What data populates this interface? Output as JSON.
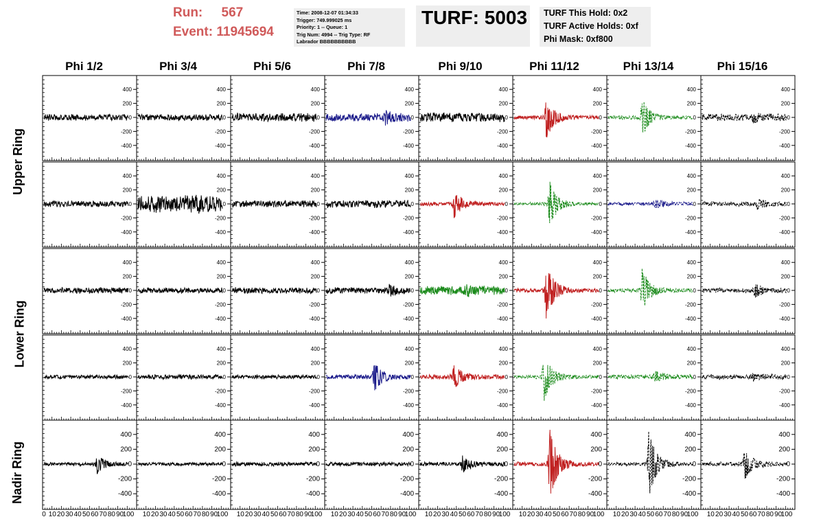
{
  "header": {
    "run_label": "Run:",
    "run_value": "567",
    "event_label": "Event:",
    "event_value": "11945694",
    "info_lines": [
      "Time: 2008-12-07 01:34:33",
      "Trigger: 749.999025 ms",
      "Priority: 1 -- Queue: 1",
      "Trig Num: 4994 -- Trig Type: RF",
      "Labrador BBBBBBBBBB"
    ],
    "turf": "TURF: 5003",
    "hold_lines": [
      "TURF This Hold: 0x2",
      "TURF Active Holds: 0xf",
      "Phi Mask: 0xf800"
    ],
    "accent_color": "#d05a5a"
  },
  "phi_headers": [
    "Phi 1/2",
    "Phi 3/4",
    "Phi 5/6",
    "Phi 7/8",
    "Phi 9/10",
    "Phi 11/12",
    "Phi 13/14",
    "Phi 15/16"
  ],
  "ring_labels": [
    "Upper Ring",
    "Lower Ring",
    "Nadir Ring"
  ],
  "chart_data": {
    "type": "line",
    "ylim": [
      -500,
      500
    ],
    "xlim": [
      0,
      100
    ],
    "y_ticks": [
      -400,
      -200,
      0,
      200,
      400
    ],
    "x_tick_labels": [
      "0",
      "10",
      "20",
      "30",
      "40",
      "50",
      "60",
      "70",
      "80",
      "90",
      "100"
    ],
    "colors": {
      "black": "#000000",
      "red": "#c02020",
      "green": "#1a8a1a",
      "blue": "#1a1a8a"
    },
    "panels": [
      [
        {
          "color": "black",
          "amp": 40,
          "peak": 0,
          "peak_x": 50,
          "dashed": false
        },
        {
          "color": "black",
          "amp": 40,
          "peak": 0,
          "peak_x": 50,
          "dashed": false
        },
        {
          "color": "black",
          "amp": 55,
          "peak": 0,
          "peak_x": 50,
          "dashed": false
        },
        {
          "color": "blue",
          "amp": 50,
          "peak": 60,
          "peak_x": 70,
          "dashed": false
        },
        {
          "color": "black",
          "amp": 60,
          "peak": 0,
          "peak_x": 50,
          "dashed": false
        },
        {
          "color": "red",
          "amp": 25,
          "peak": 300,
          "peak_x": 38,
          "dashed": false
        },
        {
          "color": "green",
          "amp": 25,
          "peak": 260,
          "peak_x": 40,
          "dashed": true
        },
        {
          "color": "black",
          "amp": 45,
          "peak": 40,
          "peak_x": 60,
          "dashed": true
        }
      ],
      [
        {
          "color": "black",
          "amp": 40,
          "peak": 0,
          "peak_x": 50,
          "dashed": false
        },
        {
          "color": "black",
          "amp": 110,
          "peak": 40,
          "peak_x": 70,
          "dashed": false
        },
        {
          "color": "black",
          "amp": 45,
          "peak": 0,
          "peak_x": 50,
          "dashed": false
        },
        {
          "color": "black",
          "amp": 50,
          "peak": 0,
          "peak_x": 50,
          "dashed": false
        },
        {
          "color": "red",
          "amp": 25,
          "peak": 190,
          "peak_x": 40,
          "dashed": false
        },
        {
          "color": "green",
          "amp": 20,
          "peak": 330,
          "peak_x": 42,
          "dashed": true
        },
        {
          "color": "blue",
          "amp": 25,
          "peak": 60,
          "peak_x": 55,
          "dashed": true
        },
        {
          "color": "black",
          "amp": 30,
          "peak": 60,
          "peak_x": 65,
          "dashed": true
        }
      ],
      [
        {
          "color": "black",
          "amp": 40,
          "peak": 0,
          "peak_x": 50,
          "dashed": false
        },
        {
          "color": "black",
          "amp": 35,
          "peak": 0,
          "peak_x": 50,
          "dashed": false
        },
        {
          "color": "black",
          "amp": 40,
          "peak": 0,
          "peak_x": 50,
          "dashed": false
        },
        {
          "color": "black",
          "amp": 40,
          "peak": 60,
          "peak_x": 75,
          "dashed": false
        },
        {
          "color": "green",
          "amp": 55,
          "peak": 50,
          "peak_x": 55,
          "dashed": false
        },
        {
          "color": "red",
          "amp": 25,
          "peak": 420,
          "peak_x": 38,
          "dashed": false
        },
        {
          "color": "green",
          "amp": 25,
          "peak": 300,
          "peak_x": 40,
          "dashed": true
        },
        {
          "color": "black",
          "amp": 30,
          "peak": 80,
          "peak_x": 62,
          "dashed": true
        }
      ],
      [
        {
          "color": "black",
          "amp": 25,
          "peak": 0,
          "peak_x": 50,
          "dashed": false
        },
        {
          "color": "black",
          "amp": 30,
          "peak": 0,
          "peak_x": 50,
          "dashed": false
        },
        {
          "color": "black",
          "amp": 25,
          "peak": 0,
          "peak_x": 50,
          "dashed": false
        },
        {
          "color": "blue",
          "amp": 30,
          "peak": 200,
          "peak_x": 57,
          "dashed": false
        },
        {
          "color": "red",
          "amp": 30,
          "peak": 170,
          "peak_x": 40,
          "dashed": false
        },
        {
          "color": "green",
          "amp": 25,
          "peak": 350,
          "peak_x": 35,
          "dashed": true
        },
        {
          "color": "green",
          "amp": 30,
          "peak": 70,
          "peak_x": 55,
          "dashed": true
        },
        {
          "color": "black",
          "amp": 30,
          "peak": 40,
          "peak_x": 60,
          "dashed": true
        }
      ],
      [
        {
          "color": "black",
          "amp": 20,
          "peak": 120,
          "peak_x": 63,
          "dashed": false
        },
        {
          "color": "black",
          "amp": 20,
          "peak": 0,
          "peak_x": 50,
          "dashed": false
        },
        {
          "color": "black",
          "amp": 25,
          "peak": 0,
          "peak_x": 50,
          "dashed": false
        },
        {
          "color": "black",
          "amp": 25,
          "peak": 0,
          "peak_x": 50,
          "dashed": false
        },
        {
          "color": "black",
          "amp": 25,
          "peak": 110,
          "peak_x": 50,
          "dashed": false
        },
        {
          "color": "red",
          "amp": 25,
          "peak": 480,
          "peak_x": 42,
          "dashed": false
        },
        {
          "color": "black",
          "amp": 20,
          "peak": 440,
          "peak_x": 48,
          "dashed": true
        },
        {
          "color": "black",
          "amp": 25,
          "peak": 200,
          "peak_x": 50,
          "dashed": true
        }
      ]
    ]
  }
}
